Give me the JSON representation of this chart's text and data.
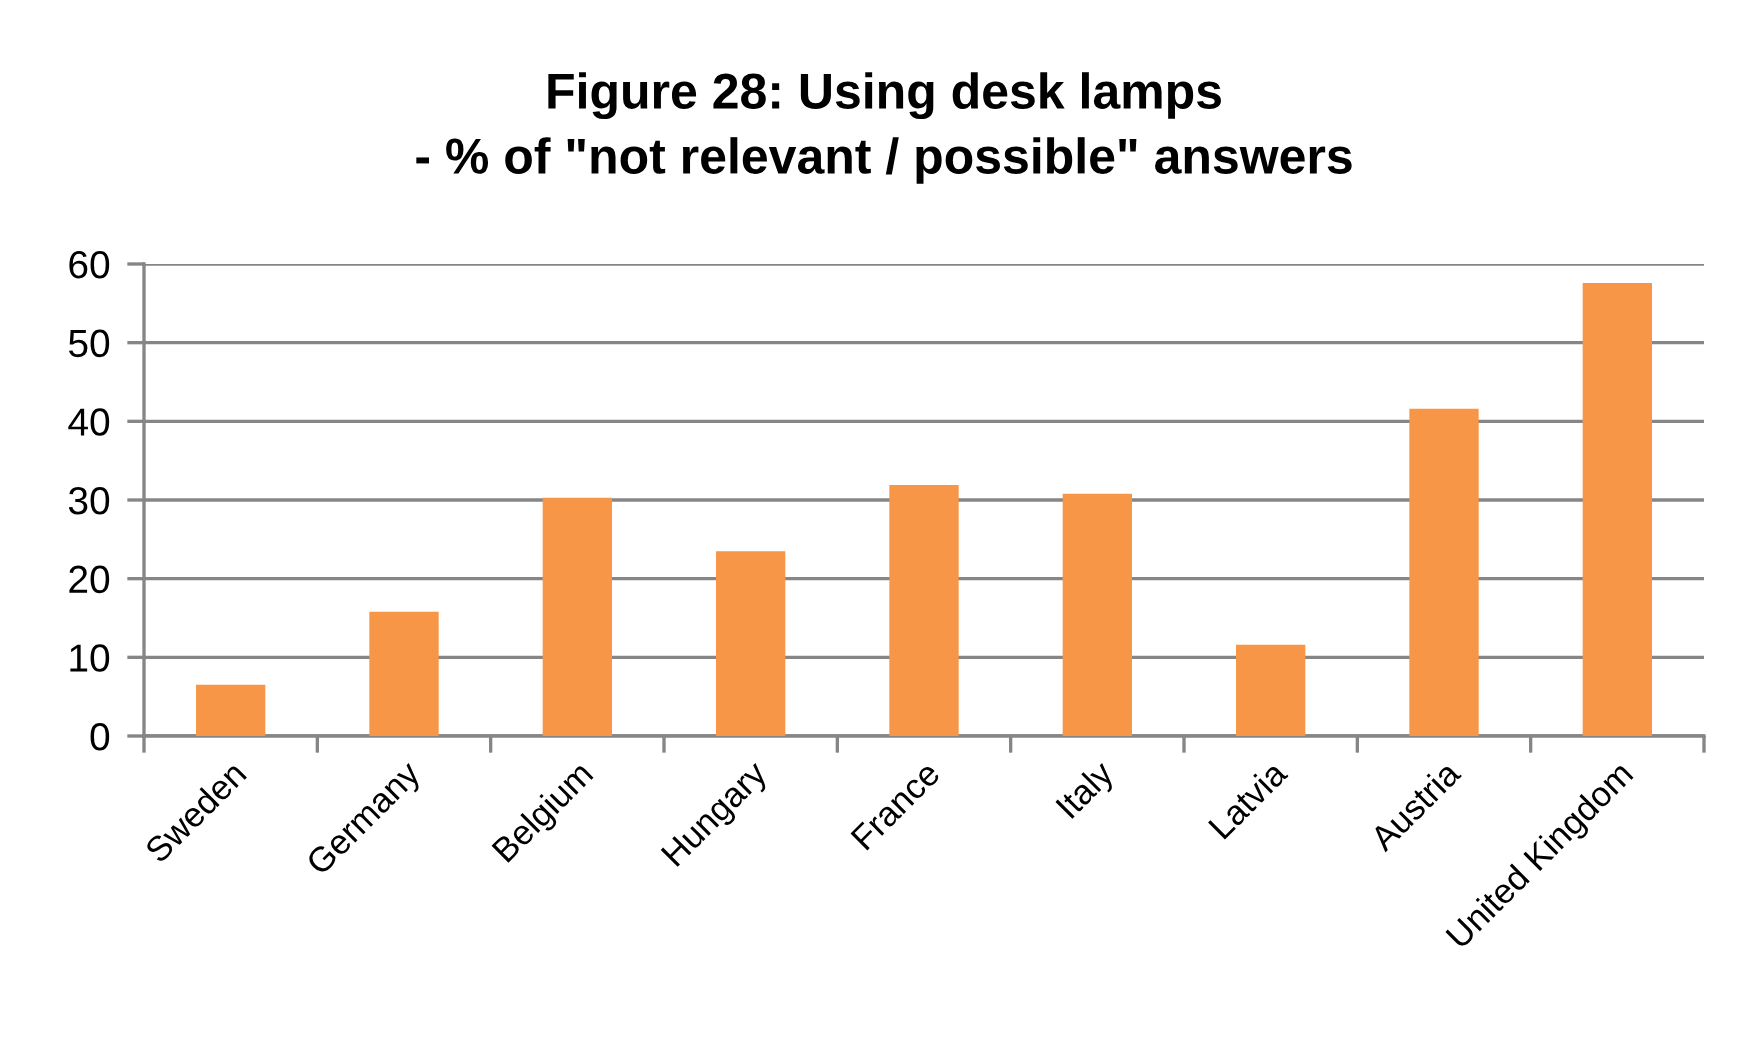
{
  "chart_data": {
    "type": "bar",
    "title": "Figure 28: Using desk lamps\n- % of \"not relevant / possible\" answers",
    "categories": [
      "Sweden",
      "Germany",
      "Belgium",
      "Hungary",
      "France",
      "Italy",
      "Latvia",
      "Austria",
      "United Kingdom"
    ],
    "values": [
      6.5,
      15.8,
      30.3,
      23.5,
      31.9,
      30.8,
      11.6,
      41.6,
      57.6
    ],
    "color": "#f79646",
    "ylim": [
      0,
      60
    ],
    "yticks": [
      0,
      10,
      20,
      30,
      40,
      50,
      60
    ],
    "grid": "y"
  }
}
